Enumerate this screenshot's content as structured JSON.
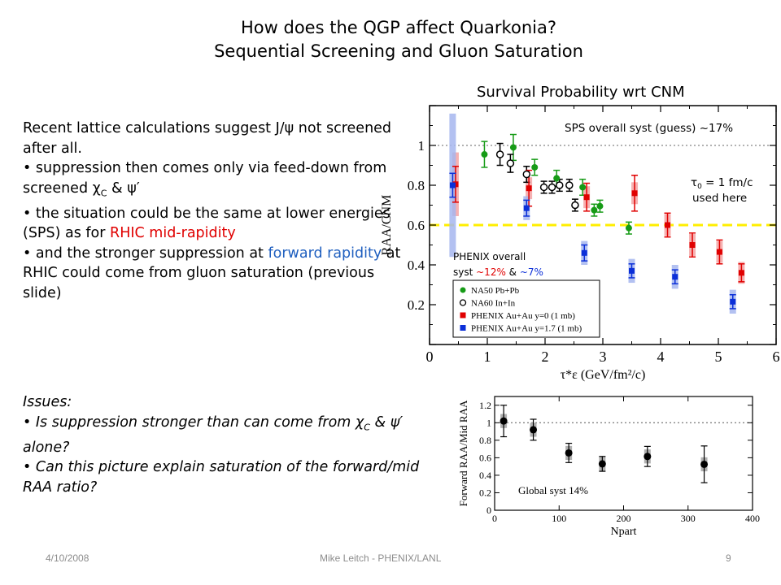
{
  "slide": {
    "title_line1": "How does the QGP affect Quarkonia?",
    "title_line2": "Sequential Screening and Gluon Saturation",
    "chart_caption": "Survival Probability wrt CNM",
    "body": {
      "p1": "Recent lattice calculations suggest J/ψ not screened after all.",
      "p2_pre": "• suppression then comes only via feed-down from screened ",
      "p2_chi": "χ",
      "p2_chi_sub": "C",
      "p2_mid": " & ",
      "p2_psi": "ψ′",
      "p3_pre": "• the situation could be the same at lower energies (SPS) as for ",
      "p3_red": "RHIC mid-rapidity",
      "p4_pre": "• and the stronger suppression at ",
      "p4_blue": "forward rapidity",
      "p4_post": " at RHIC could come from gluon saturation (previous slide)"
    },
    "issues": {
      "heading": "Issues:",
      "i1_pre": "• Is suppression stronger than can come from ",
      "i1_chi": "χ",
      "i1_chi_sub": "C",
      "i1_mid": " & ",
      "i1_psi": "ψ′",
      "i1_post": " alone?",
      "i2": "• Can this picture explain saturation of  the forward/mid RAA ratio?"
    },
    "footer": {
      "date": "4/10/2008",
      "author": "Mike Leitch - PHENIX/LANL",
      "page": "9"
    }
  },
  "chart_data": [
    {
      "type": "scatter",
      "xlabel": "τ*ε (GeV/fm²/c)",
      "ylabel": "RAA/CNM",
      "xlim": [
        0,
        6
      ],
      "ylim": [
        0,
        1.2
      ],
      "xticks": [
        "0",
        "1",
        "2",
        "3",
        "4",
        "5",
        "6"
      ],
      "yticks": [
        "0.2",
        "0.4",
        "0.6",
        "0.8",
        "1"
      ],
      "reference_line": {
        "y": 1,
        "style": "dotted"
      },
      "highlight_line": {
        "y": 0.6,
        "style": "dashed",
        "color": "#ffee00"
      },
      "annotations": {
        "sps_syst": "SPS overall syst (guess) ~17%",
        "tau0": "τ",
        "tau0_sub": "0",
        "tau0_rest": " = 1 fm/c",
        "used_here": "used here",
        "phenix_line1": "PHENIX overall",
        "phenix_line2_pre": "syst ",
        "phenix_line2_red": "~12%",
        "phenix_line2_mid": " & ",
        "phenix_line2_blue": "~7%"
      },
      "legend_position": "bottom-left",
      "series": [
        {
          "name": "NA50 Pb+Pb",
          "color": "#169b16",
          "marker": "filled-circle",
          "x": [
            0.95,
            1.45,
            1.82,
            2.2,
            2.65,
            2.85,
            2.95,
            3.45
          ],
          "y": [
            0.955,
            0.99,
            0.89,
            0.835,
            0.79,
            0.675,
            0.695,
            0.585
          ],
          "err": [
            0.065,
            0.065,
            0.04,
            0.04,
            0.04,
            0.03,
            0.03,
            0.03
          ]
        },
        {
          "name": "NA60 In+In",
          "color": "#000000",
          "marker": "open-circle",
          "x": [
            1.22,
            1.4,
            1.68,
            1.98,
            2.12,
            2.25,
            2.42,
            2.52
          ],
          "y": [
            0.955,
            0.91,
            0.855,
            0.79,
            0.79,
            0.8,
            0.8,
            0.7
          ],
          "err": [
            0.055,
            0.045,
            0.04,
            0.03,
            0.03,
            0.03,
            0.03,
            0.03
          ]
        },
        {
          "name": "PHENIX Au+Au y=0 (1 mb)",
          "color": "#e00000",
          "marker": "filled-square",
          "x": [
            0.45,
            1.72,
            2.72,
            3.55,
            4.12,
            4.55,
            5.02,
            5.4
          ],
          "y": [
            0.805,
            0.785,
            0.74,
            0.76,
            0.6,
            0.5,
            0.465,
            0.36
          ],
          "err": [
            0.09,
            0.09,
            0.07,
            0.09,
            0.06,
            0.06,
            0.06,
            0.045
          ]
        },
        {
          "name": "PHENIX Au+Au y=1.7 (1 mb)",
          "color": "#0b2fd8",
          "marker": "filled-square",
          "x": [
            0.4,
            1.68,
            2.68,
            3.5,
            4.25,
            5.25
          ],
          "y": [
            0.8,
            0.685,
            0.46,
            0.37,
            0.34,
            0.215
          ],
          "err": [
            0.06,
            0.04,
            0.04,
            0.035,
            0.035,
            0.035
          ]
        }
      ]
    },
    {
      "type": "scatter",
      "xlabel": "Npart",
      "ylabel": "Forward RAA/Mid RAA",
      "xlim": [
        0,
        400
      ],
      "ylim": [
        0,
        1.3
      ],
      "xticks": [
        "0",
        "100",
        "200",
        "300",
        "400"
      ],
      "yticks": [
        "0",
        "0.2",
        "0.4",
        "0.6",
        "0.8",
        "1",
        "1.2"
      ],
      "reference_line": {
        "y": 1,
        "style": "dotted"
      },
      "annotation": "Global syst 14%",
      "series": [
        {
          "name": "",
          "color": "#000000",
          "marker": "filled-circle",
          "x": [
            14,
            60,
            115,
            167,
            237,
            325
          ],
          "y": [
            1.02,
            0.92,
            0.655,
            0.53,
            0.615,
            0.525
          ],
          "err": [
            0.18,
            0.12,
            0.11,
            0.085,
            0.115,
            0.21
          ]
        }
      ]
    }
  ]
}
